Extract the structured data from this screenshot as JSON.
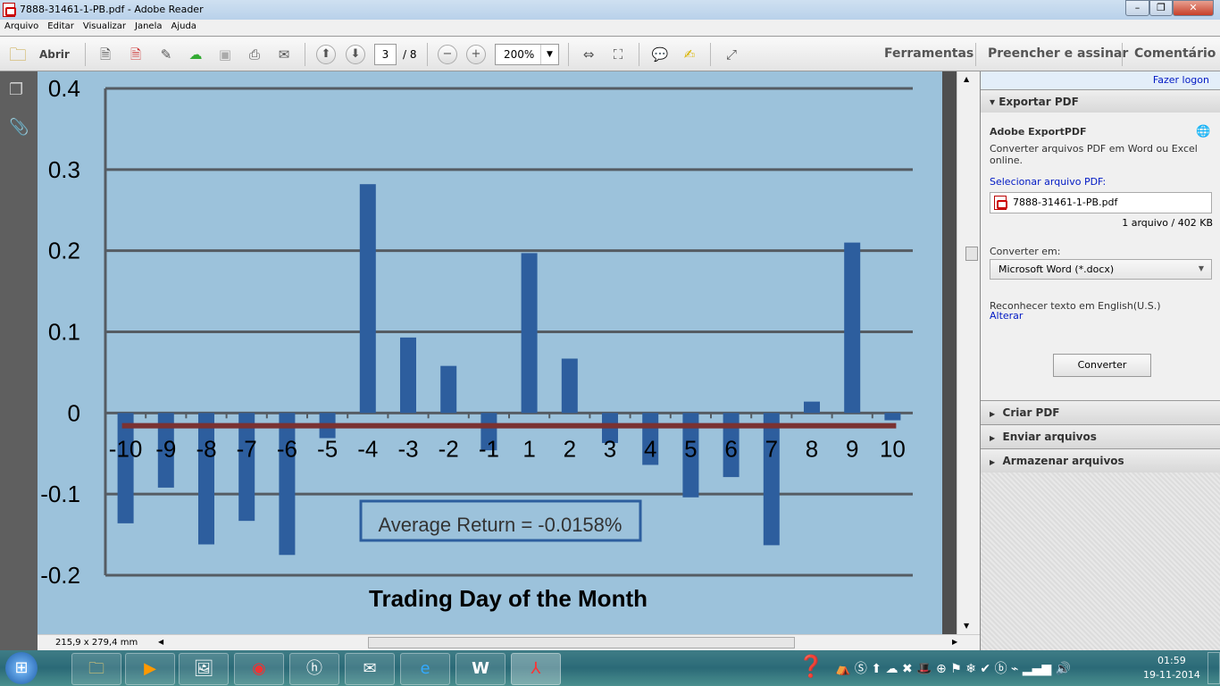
{
  "window": {
    "title": "7888-31461-1-PB.pdf - Adobe Reader",
    "buttons": [
      "–",
      "❐",
      "✕"
    ]
  },
  "menu": [
    "Arquivo",
    "Editar",
    "Visualizar",
    "Janela",
    "Ajuda"
  ],
  "toolbar": {
    "open_label": "Abrir",
    "page_current": "3",
    "page_total": "/ 8",
    "zoom": "200%",
    "right_tabs": [
      "Ferramentas",
      "Preencher e assinar",
      "Comentário"
    ]
  },
  "status": {
    "page_size": "215,9 x 279,4 mm"
  },
  "panel": {
    "login": "Fazer logon",
    "export_header": "Exportar PDF",
    "service_title": "Adobe ExportPDF",
    "service_desc": "Converter arquivos PDF em Word ou Excel online.",
    "select_label": "Selecionar arquivo PDF:",
    "file_name": "7888-31461-1-PB.pdf",
    "file_info": "1 arquivo / 402 KB",
    "convert_to_label": "Converter em:",
    "convert_to_value": "Microsoft Word (*.docx)",
    "ocr_text": "Reconhecer texto em English(U.S.)",
    "ocr_change": "Alterar",
    "convert_button": "Converter",
    "sections": [
      "Criar PDF",
      "Enviar arquivos",
      "Armazenar arquivos"
    ]
  },
  "taskbar": {
    "time": "01:59",
    "date": "19-11-2014"
  },
  "chart_data": {
    "type": "bar",
    "xlabel": "Trading Day of the Month",
    "ylabel": "",
    "ylim": [
      -0.2,
      0.4
    ],
    "yticks": [
      "0.4",
      "0.3",
      "0.2",
      "0.1",
      "0",
      "-0.1",
      "-0.2"
    ],
    "grid": true,
    "categories": [
      "-10",
      "-9",
      "-8",
      "-7",
      "-6",
      "-5",
      "-4",
      "-3",
      "-2",
      "-1",
      "1",
      "2",
      "3",
      "4",
      "5",
      "6",
      "7",
      "8",
      "9",
      "10"
    ],
    "values": [
      -0.136,
      -0.092,
      -0.162,
      -0.133,
      -0.175,
      -0.031,
      0.282,
      0.093,
      0.058,
      -0.046,
      0.197,
      0.067,
      -0.037,
      -0.064,
      -0.104,
      -0.079,
      -0.163,
      0.014,
      0.21,
      -0.009
    ],
    "average_line": -0.0158,
    "annotation": "Average Return = -0.0158%",
    "colors": {
      "bar": "#2d5e9e",
      "average": "#7a3232",
      "background": "#9cc2db",
      "grid": "#555c63"
    }
  }
}
